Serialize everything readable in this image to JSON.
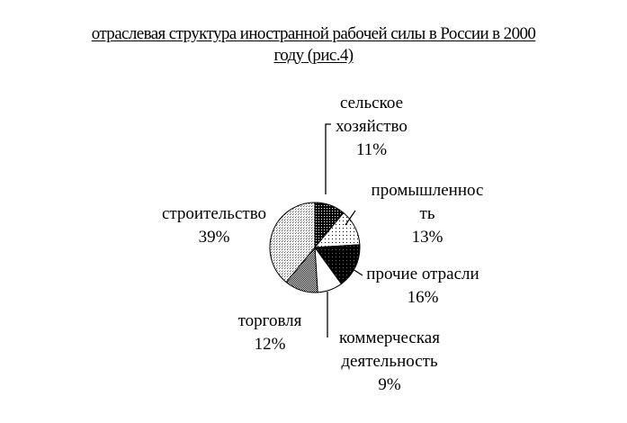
{
  "title_line1": "отраслевая структура иностранной рабочей силы в России в 2000",
  "title_line2": "году (рис.4)",
  "chart_data": {
    "type": "pie",
    "title": "отраслевая структура иностранной рабочей силы в России в 2000 году (рис.4)",
    "slices": [
      {
        "label_lines": [
          "сельское",
          "хозяйство"
        ],
        "value_label": "11%",
        "value": 11,
        "pattern": "dark-dots"
      },
      {
        "label_lines": [
          "промышленнос",
          "ть"
        ],
        "value_label": "13%",
        "value": 13,
        "pattern": "sparse-dots"
      },
      {
        "label_lines": [
          "прочие отрасли"
        ],
        "value_label": "16%",
        "value": 16,
        "pattern": "black-grid"
      },
      {
        "label_lines": [
          "коммерческая",
          "деятельность"
        ],
        "value_label": "9%",
        "value": 9,
        "pattern": "white"
      },
      {
        "label_lines": [
          "торговля"
        ],
        "value_label": "12%",
        "value": 12,
        "pattern": "checker"
      },
      {
        "label_lines": [
          "строительство"
        ],
        "value_label": "39%",
        "value": 39,
        "pattern": "light-dots"
      }
    ]
  }
}
